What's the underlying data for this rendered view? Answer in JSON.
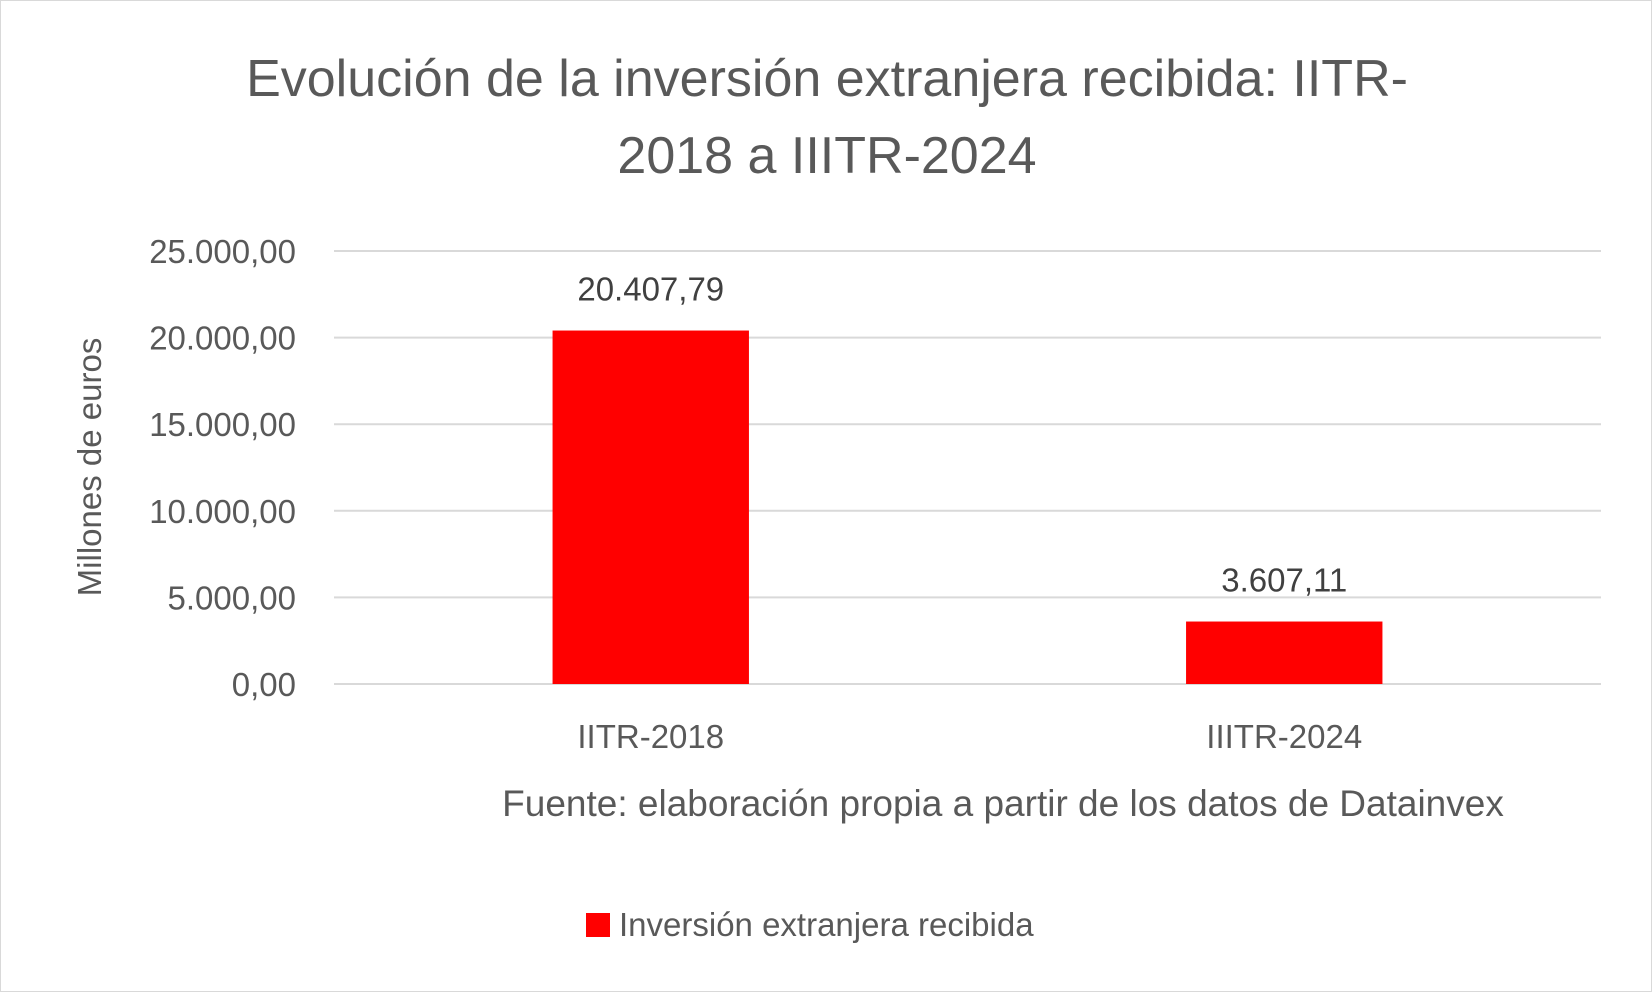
{
  "chart_data": {
    "type": "bar",
    "title_lines": [
      "Evolución de la inversión extranjera recibida: IITR-",
      "2018 a IIITR-2024"
    ],
    "categories": [
      "IITR-2018",
      "IIITR-2024"
    ],
    "series": [
      {
        "name": "Inversión extranjera recibida",
        "values": [
          20407.79,
          3607.11
        ],
        "color": "#ff0000"
      }
    ],
    "data_labels": [
      "20.407,79",
      "3.607,11"
    ],
    "ylabel": "Millones de euros",
    "xlabel": "Fuente: elaboración propia a partir de los datos de Datainvex",
    "ylim": [
      0,
      25000
    ],
    "yticks": [
      0,
      5000,
      10000,
      15000,
      20000,
      25000
    ],
    "ytick_labels": [
      "0,00",
      "5.000,00",
      "10.000,00",
      "15.000,00",
      "20.000,00",
      "25.000,00"
    ],
    "grid": true,
    "gridline_color": "#d9d9d9",
    "legend_position": "bottom"
  }
}
